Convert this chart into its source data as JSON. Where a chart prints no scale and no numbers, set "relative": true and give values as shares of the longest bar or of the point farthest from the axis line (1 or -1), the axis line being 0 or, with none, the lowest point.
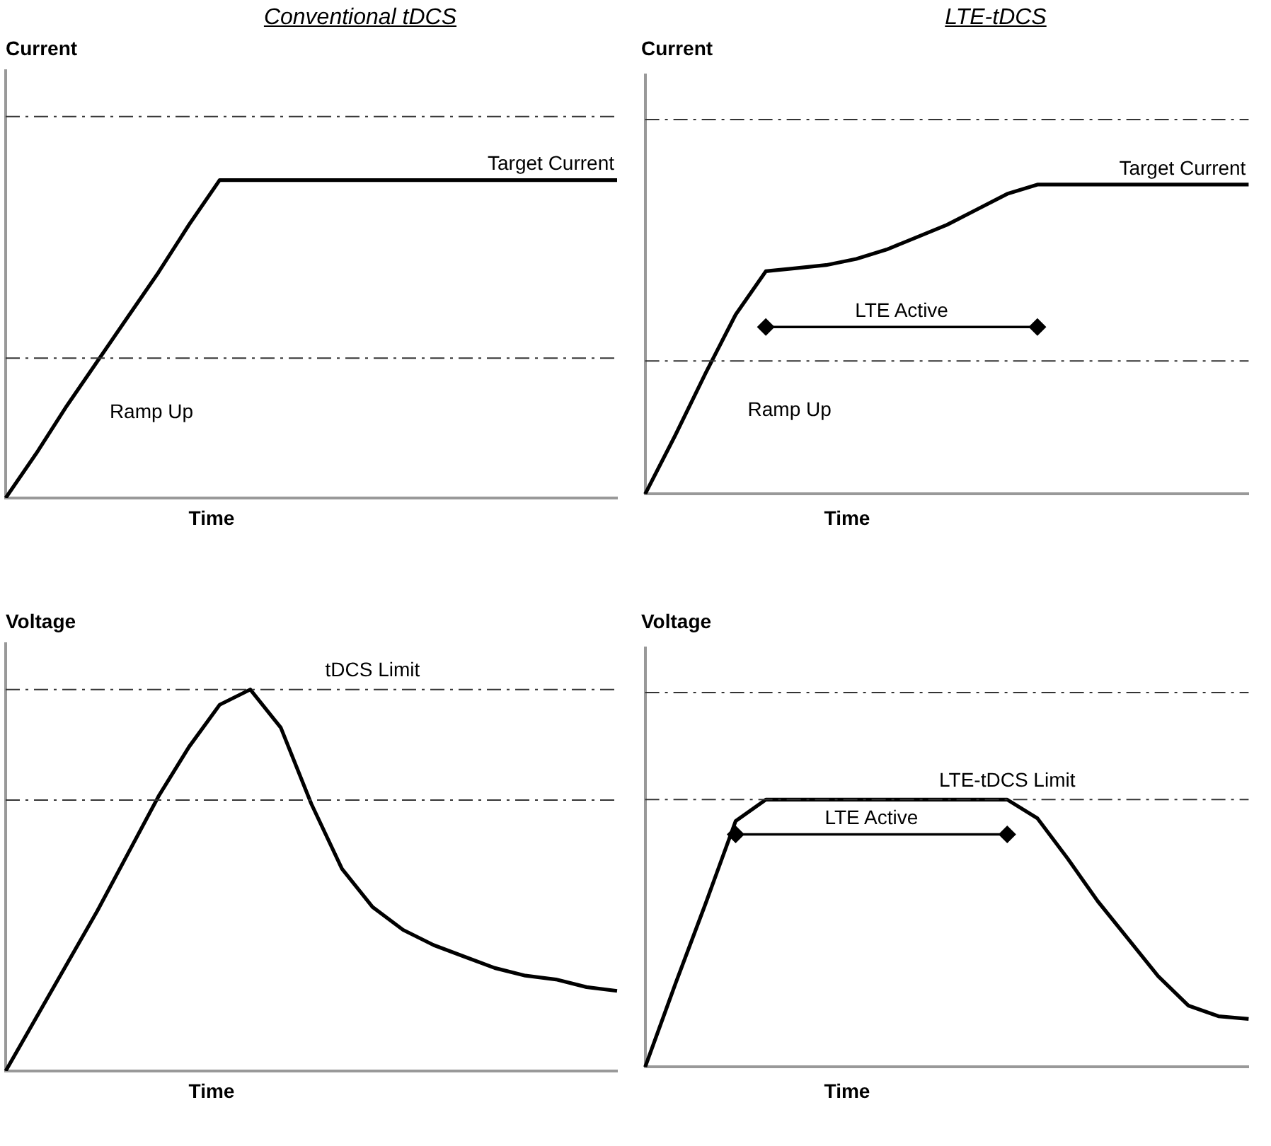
{
  "chart_data": [
    {
      "type": "line",
      "title": "Conventional tDCS",
      "ylabel": "Current",
      "xlabel": "Time",
      "relative": true,
      "tick_labels": false,
      "marker": "none",
      "line_style": "solid",
      "categories": [
        null,
        null,
        null,
        null,
        null,
        null,
        null,
        null,
        null,
        null,
        null,
        null,
        null,
        null,
        null,
        null,
        null,
        null,
        null,
        null,
        null
      ],
      "series": [
        {
          "color": "#000000",
          "values": [
            0,
            0.14,
            0.29,
            0.43,
            0.57,
            0.71,
            0.86,
            1,
            1,
            1,
            1,
            1,
            1,
            1,
            1,
            1,
            1,
            1,
            1,
            1,
            1
          ]
        }
      ],
      "ref_lines": [
        {
          "axis": "y",
          "value": 1.2,
          "line_style": "dashed",
          "color": "#333333"
        },
        {
          "axis": "y",
          "value": 0.44,
          "line_style": "dashed",
          "color": "#333333"
        }
      ],
      "annotations": [
        {
          "text": "Target Current",
          "y": 1
        },
        "Ramp Up"
      ]
    },
    {
      "type": "line",
      "title": "LTE-tDCS",
      "ylabel": "Current",
      "xlabel": "Time",
      "relative": true,
      "tick_labels": false,
      "marker": "none",
      "line_style": "solid",
      "categories": [
        null,
        null,
        null,
        null,
        null,
        null,
        null,
        null,
        null,
        null,
        null,
        null,
        null,
        null,
        null,
        null,
        null,
        null,
        null,
        null,
        null
      ],
      "series": [
        {
          "color": "#000000",
          "values": [
            0,
            0.19,
            0.39,
            0.58,
            0.72,
            0.73,
            0.74,
            0.76,
            0.79,
            0.83,
            0.87,
            0.92,
            0.97,
            1,
            1,
            1,
            1,
            1,
            1,
            1,
            1
          ]
        },
        {
          "name": "LTE Active",
          "color": "#000000",
          "marker": "diamond",
          "values": [
            null,
            null,
            null,
            null,
            0.54,
            null,
            null,
            null,
            null,
            null,
            null,
            null,
            null,
            0.54,
            null,
            null,
            null,
            null,
            null,
            null,
            null
          ]
        }
      ],
      "ref_lines": [
        {
          "axis": "y",
          "value": 1.21,
          "line_style": "dashed",
          "color": "#333333"
        },
        {
          "axis": "y",
          "value": 0.43,
          "line_style": "dashed",
          "color": "#333333"
        }
      ],
      "annotations": [
        {
          "text": "Target Current",
          "y": 1
        },
        "Ramp Up"
      ]
    },
    {
      "type": "line",
      "ylabel": "Voltage",
      "xlabel": "Time",
      "relative": true,
      "tick_labels": false,
      "marker": "none",
      "line_style": "solid",
      "categories": [
        null,
        null,
        null,
        null,
        null,
        null,
        null,
        null,
        null,
        null,
        null,
        null,
        null,
        null,
        null,
        null,
        null,
        null,
        null,
        null,
        null
      ],
      "series": [
        {
          "color": "#000000",
          "values": [
            0,
            0.14,
            0.28,
            0.42,
            0.57,
            0.72,
            0.85,
            0.96,
            1,
            0.9,
            0.7,
            0.53,
            0.43,
            0.37,
            0.33,
            0.3,
            0.27,
            0.25,
            0.24,
            0.22,
            0.21
          ]
        }
      ],
      "ref_lines": [
        {
          "axis": "y",
          "value": 1,
          "label": "tDCS Limit",
          "line_style": "dashed",
          "color": "#333333"
        },
        {
          "axis": "y",
          "value": 0.71,
          "line_style": "dashed",
          "color": "#333333"
        }
      ]
    },
    {
      "type": "line",
      "ylabel": "Voltage",
      "xlabel": "Time",
      "relative": true,
      "tick_labels": false,
      "marker": "none",
      "line_style": "solid",
      "categories": [
        null,
        null,
        null,
        null,
        null,
        null,
        null,
        null,
        null,
        null,
        null,
        null,
        null,
        null,
        null,
        null,
        null,
        null,
        null,
        null,
        null
      ],
      "series": [
        {
          "color": "#000000",
          "values": [
            0,
            0.31,
            0.61,
            0.92,
            1,
            1,
            1,
            1,
            1,
            1,
            1,
            1,
            1,
            0.93,
            0.78,
            0.62,
            0.48,
            0.34,
            0.23,
            0.19,
            0.18
          ]
        },
        {
          "name": "LTE Active",
          "color": "#000000",
          "marker": "diamond",
          "values": [
            null,
            null,
            null,
            0.87,
            null,
            null,
            null,
            null,
            null,
            null,
            null,
            null,
            0.87,
            null,
            null,
            null,
            null,
            null,
            null,
            null,
            null
          ]
        }
      ],
      "ref_lines": [
        {
          "axis": "y",
          "value": 1.4,
          "line_style": "dashed",
          "color": "#333333"
        },
        {
          "axis": "y",
          "value": 1,
          "label": "LTE-tDCS Limit",
          "line_style": "dashed",
          "color": "#333333"
        }
      ]
    }
  ]
}
